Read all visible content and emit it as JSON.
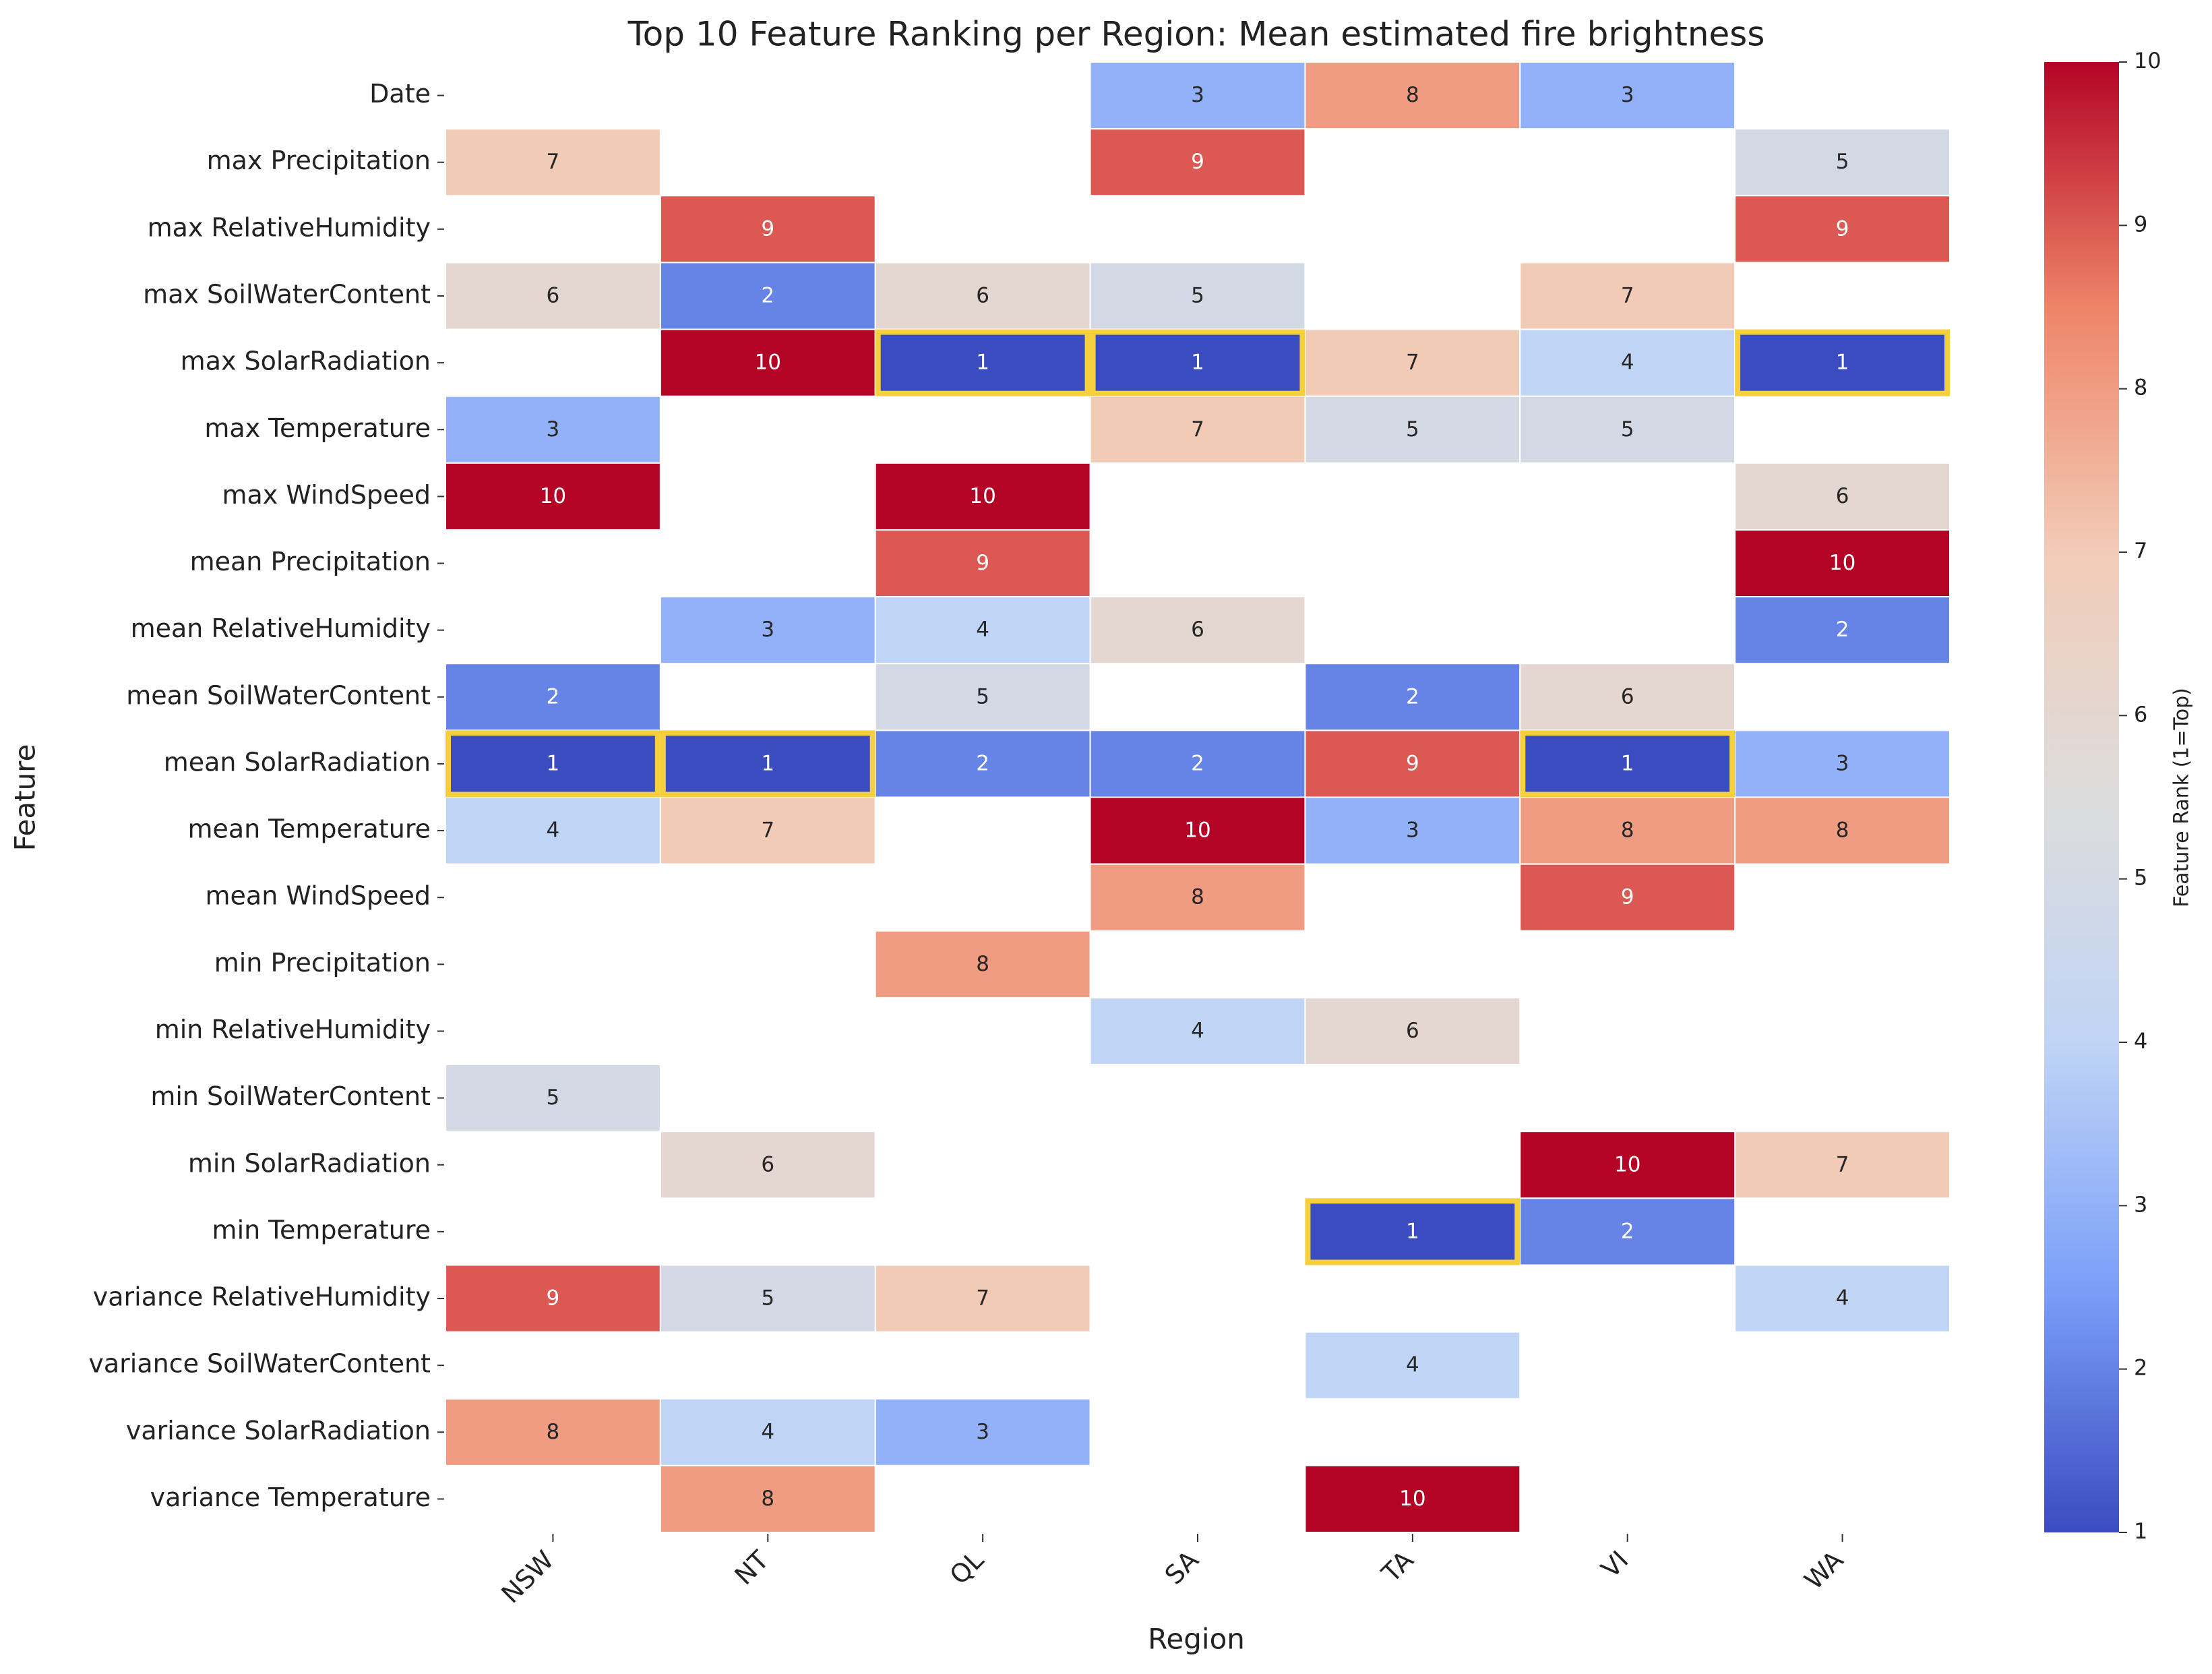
{
  "chart_data": {
    "type": "heatmap",
    "title": "Top 10 Feature Ranking per Region: Mean estimated fire brightness",
    "xlabel": "Region",
    "ylabel": "Feature",
    "x": [
      "NSW",
      "NT",
      "QL",
      "SA",
      "TA",
      "VI",
      "WA"
    ],
    "y": [
      "Date",
      "max Precipitation",
      "max RelativeHumidity",
      "max SoilWaterContent",
      "max SolarRadiation",
      "max Temperature",
      "max WindSpeed",
      "mean Precipitation",
      "mean RelativeHumidity",
      "mean SoilWaterContent",
      "mean SolarRadiation",
      "mean Temperature",
      "mean WindSpeed",
      "min Precipitation",
      "min RelativeHumidity",
      "min SoilWaterContent",
      "min SolarRadiation",
      "min Temperature",
      "variance RelativeHumidity",
      "variance SoilWaterContent",
      "variance SolarRadiation",
      "variance Temperature"
    ],
    "values": [
      [
        null,
        null,
        null,
        3,
        8,
        3,
        null
      ],
      [
        7,
        null,
        null,
        9,
        null,
        null,
        5
      ],
      [
        null,
        9,
        null,
        null,
        null,
        null,
        9
      ],
      [
        6,
        2,
        6,
        5,
        null,
        7,
        null
      ],
      [
        null,
        10,
        1,
        1,
        7,
        4,
        1
      ],
      [
        3,
        null,
        null,
        7,
        5,
        5,
        null
      ],
      [
        10,
        null,
        10,
        null,
        null,
        null,
        6
      ],
      [
        null,
        null,
        9,
        null,
        null,
        null,
        10
      ],
      [
        null,
        3,
        4,
        6,
        null,
        null,
        2
      ],
      [
        2,
        null,
        5,
        null,
        2,
        6,
        null
      ],
      [
        1,
        1,
        2,
        2,
        9,
        1,
        3
      ],
      [
        4,
        7,
        null,
        10,
        3,
        8,
        8
      ],
      [
        null,
        null,
        null,
        8,
        null,
        9,
        null
      ],
      [
        null,
        null,
        8,
        null,
        null,
        null,
        null
      ],
      [
        null,
        null,
        null,
        4,
        6,
        null,
        null
      ],
      [
        5,
        null,
        null,
        null,
        null,
        null,
        null
      ],
      [
        null,
        6,
        null,
        null,
        null,
        10,
        7
      ],
      [
        null,
        null,
        null,
        null,
        1,
        2,
        null
      ],
      [
        9,
        5,
        7,
        null,
        null,
        null,
        4
      ],
      [
        null,
        null,
        null,
        null,
        4,
        null,
        null
      ],
      [
        8,
        4,
        3,
        null,
        null,
        null,
        null
      ],
      [
        null,
        8,
        null,
        null,
        10,
        null,
        null
      ]
    ],
    "colorbar": {
      "label": "Feature Rank (1=Top)",
      "lim": [
        1,
        10
      ],
      "ticks": [
        1,
        2,
        3,
        4,
        5,
        6,
        7,
        8,
        9,
        10
      ]
    },
    "colormap": [
      "#3b4cc0",
      "#7b9ff9",
      "#c0d4f5",
      "#dddcdc",
      "#f2cbb7",
      "#ee8468",
      "#b40426"
    ],
    "highlight_color": "#f5d03c"
  }
}
